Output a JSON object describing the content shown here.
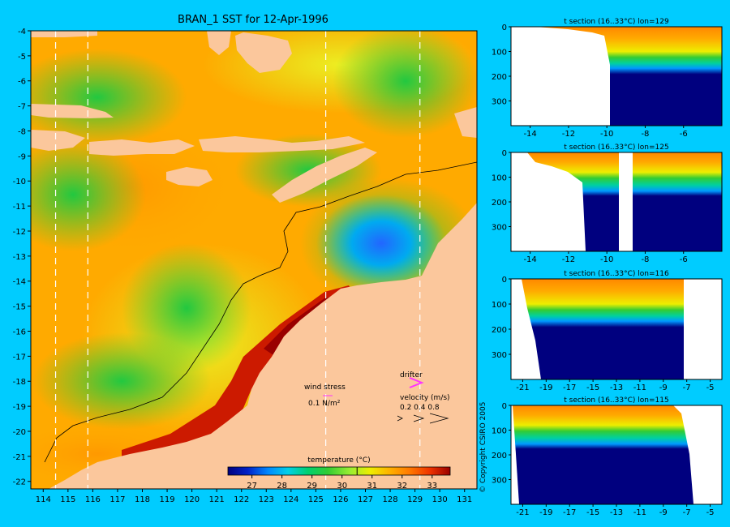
{
  "title": "BRAN_1 SST for 12-Apr-1996",
  "copyright": "© Copyright CSIRO 2005",
  "colors": {
    "background": "#00ccff",
    "land": "#fbc79c",
    "frame": "#000000",
    "drifter": "#ff33ff",
    "mask": "#ffffff"
  },
  "annotations": {
    "wind_label": "wind stress",
    "wind_scale": "0.1 N/m²",
    "drifter_label": "drifter",
    "velocity_label": "velocity (m/s)",
    "velocity_scale": "0.2 0.4 0.8"
  },
  "chart_data": [
    {
      "type": "heatmap",
      "title": "BRAN_1 SST for 12-Apr-1996",
      "xlabel": "",
      "ylabel": "",
      "xlim": [
        113.5,
        131.5
      ],
      "ylim": [
        -22.3,
        -4
      ],
      "xticks": [
        "114",
        "115",
        "116",
        "117",
        "118",
        "119",
        "120",
        "121",
        "122",
        "123",
        "124",
        "125",
        "126",
        "127",
        "128",
        "129",
        "130",
        "131"
      ],
      "yticks": [
        "-4",
        "-5",
        "-6",
        "-7",
        "-8",
        "-9",
        "-10",
        "-11",
        "-12",
        "-13",
        "-14",
        "-15",
        "-16",
        "-17",
        "-18",
        "-19",
        "-20",
        "-21",
        "-22"
      ],
      "section_lines_lon": [
        114.5,
        115.8,
        125.4,
        129.2
      ],
      "colorbar": {
        "label": "temperature (°C)",
        "min": 26.2,
        "max": 33.6,
        "ticks": [
          "27",
          "28",
          "29",
          "30",
          "31",
          "32",
          "33"
        ],
        "contour_value": 30.5
      },
      "colormap": [
        "#00007f",
        "#0022c8",
        "#0088ff",
        "#00d0e8",
        "#00d070",
        "#33cc33",
        "#99ee33",
        "#eeee00",
        "#ffb000",
        "#ff7700",
        "#ee3300",
        "#990000"
      ]
    },
    {
      "type": "heatmap",
      "title": "t section (16..33°C) lon=129",
      "xlim": [
        -15,
        -4
      ],
      "ylim": [
        400,
        0
      ],
      "xticks": [
        "-14",
        "-12",
        "-10",
        "-8",
        "-6"
      ],
      "yticks": [
        "0",
        "100",
        "200",
        "300"
      ]
    },
    {
      "type": "heatmap",
      "title": "t section (16..33°C) lon=125",
      "xlim": [
        -15,
        -4
      ],
      "ylim": [
        400,
        0
      ],
      "xticks": [
        "-14",
        "-12",
        "-10",
        "-8",
        "-6"
      ],
      "yticks": [
        "0",
        "100",
        "200",
        "300"
      ]
    },
    {
      "type": "heatmap",
      "title": "t section (16..33°C) lon=116",
      "xlim": [
        -22,
        -4
      ],
      "ylim": [
        400,
        0
      ],
      "xticks": [
        "-21",
        "-19",
        "-17",
        "-15",
        "-13",
        "-11",
        "-9",
        "-7",
        "-5"
      ],
      "yticks": [
        "0",
        "100",
        "200",
        "300"
      ]
    },
    {
      "type": "heatmap",
      "title": "t section (16..33°C) lon=115",
      "xlim": [
        -22,
        -4
      ],
      "ylim": [
        400,
        0
      ],
      "xticks": [
        "-21",
        "-19",
        "-17",
        "-15",
        "-13",
        "-11",
        "-9",
        "-7",
        "-5"
      ],
      "yticks": [
        "0",
        "100",
        "200",
        "300"
      ]
    }
  ]
}
